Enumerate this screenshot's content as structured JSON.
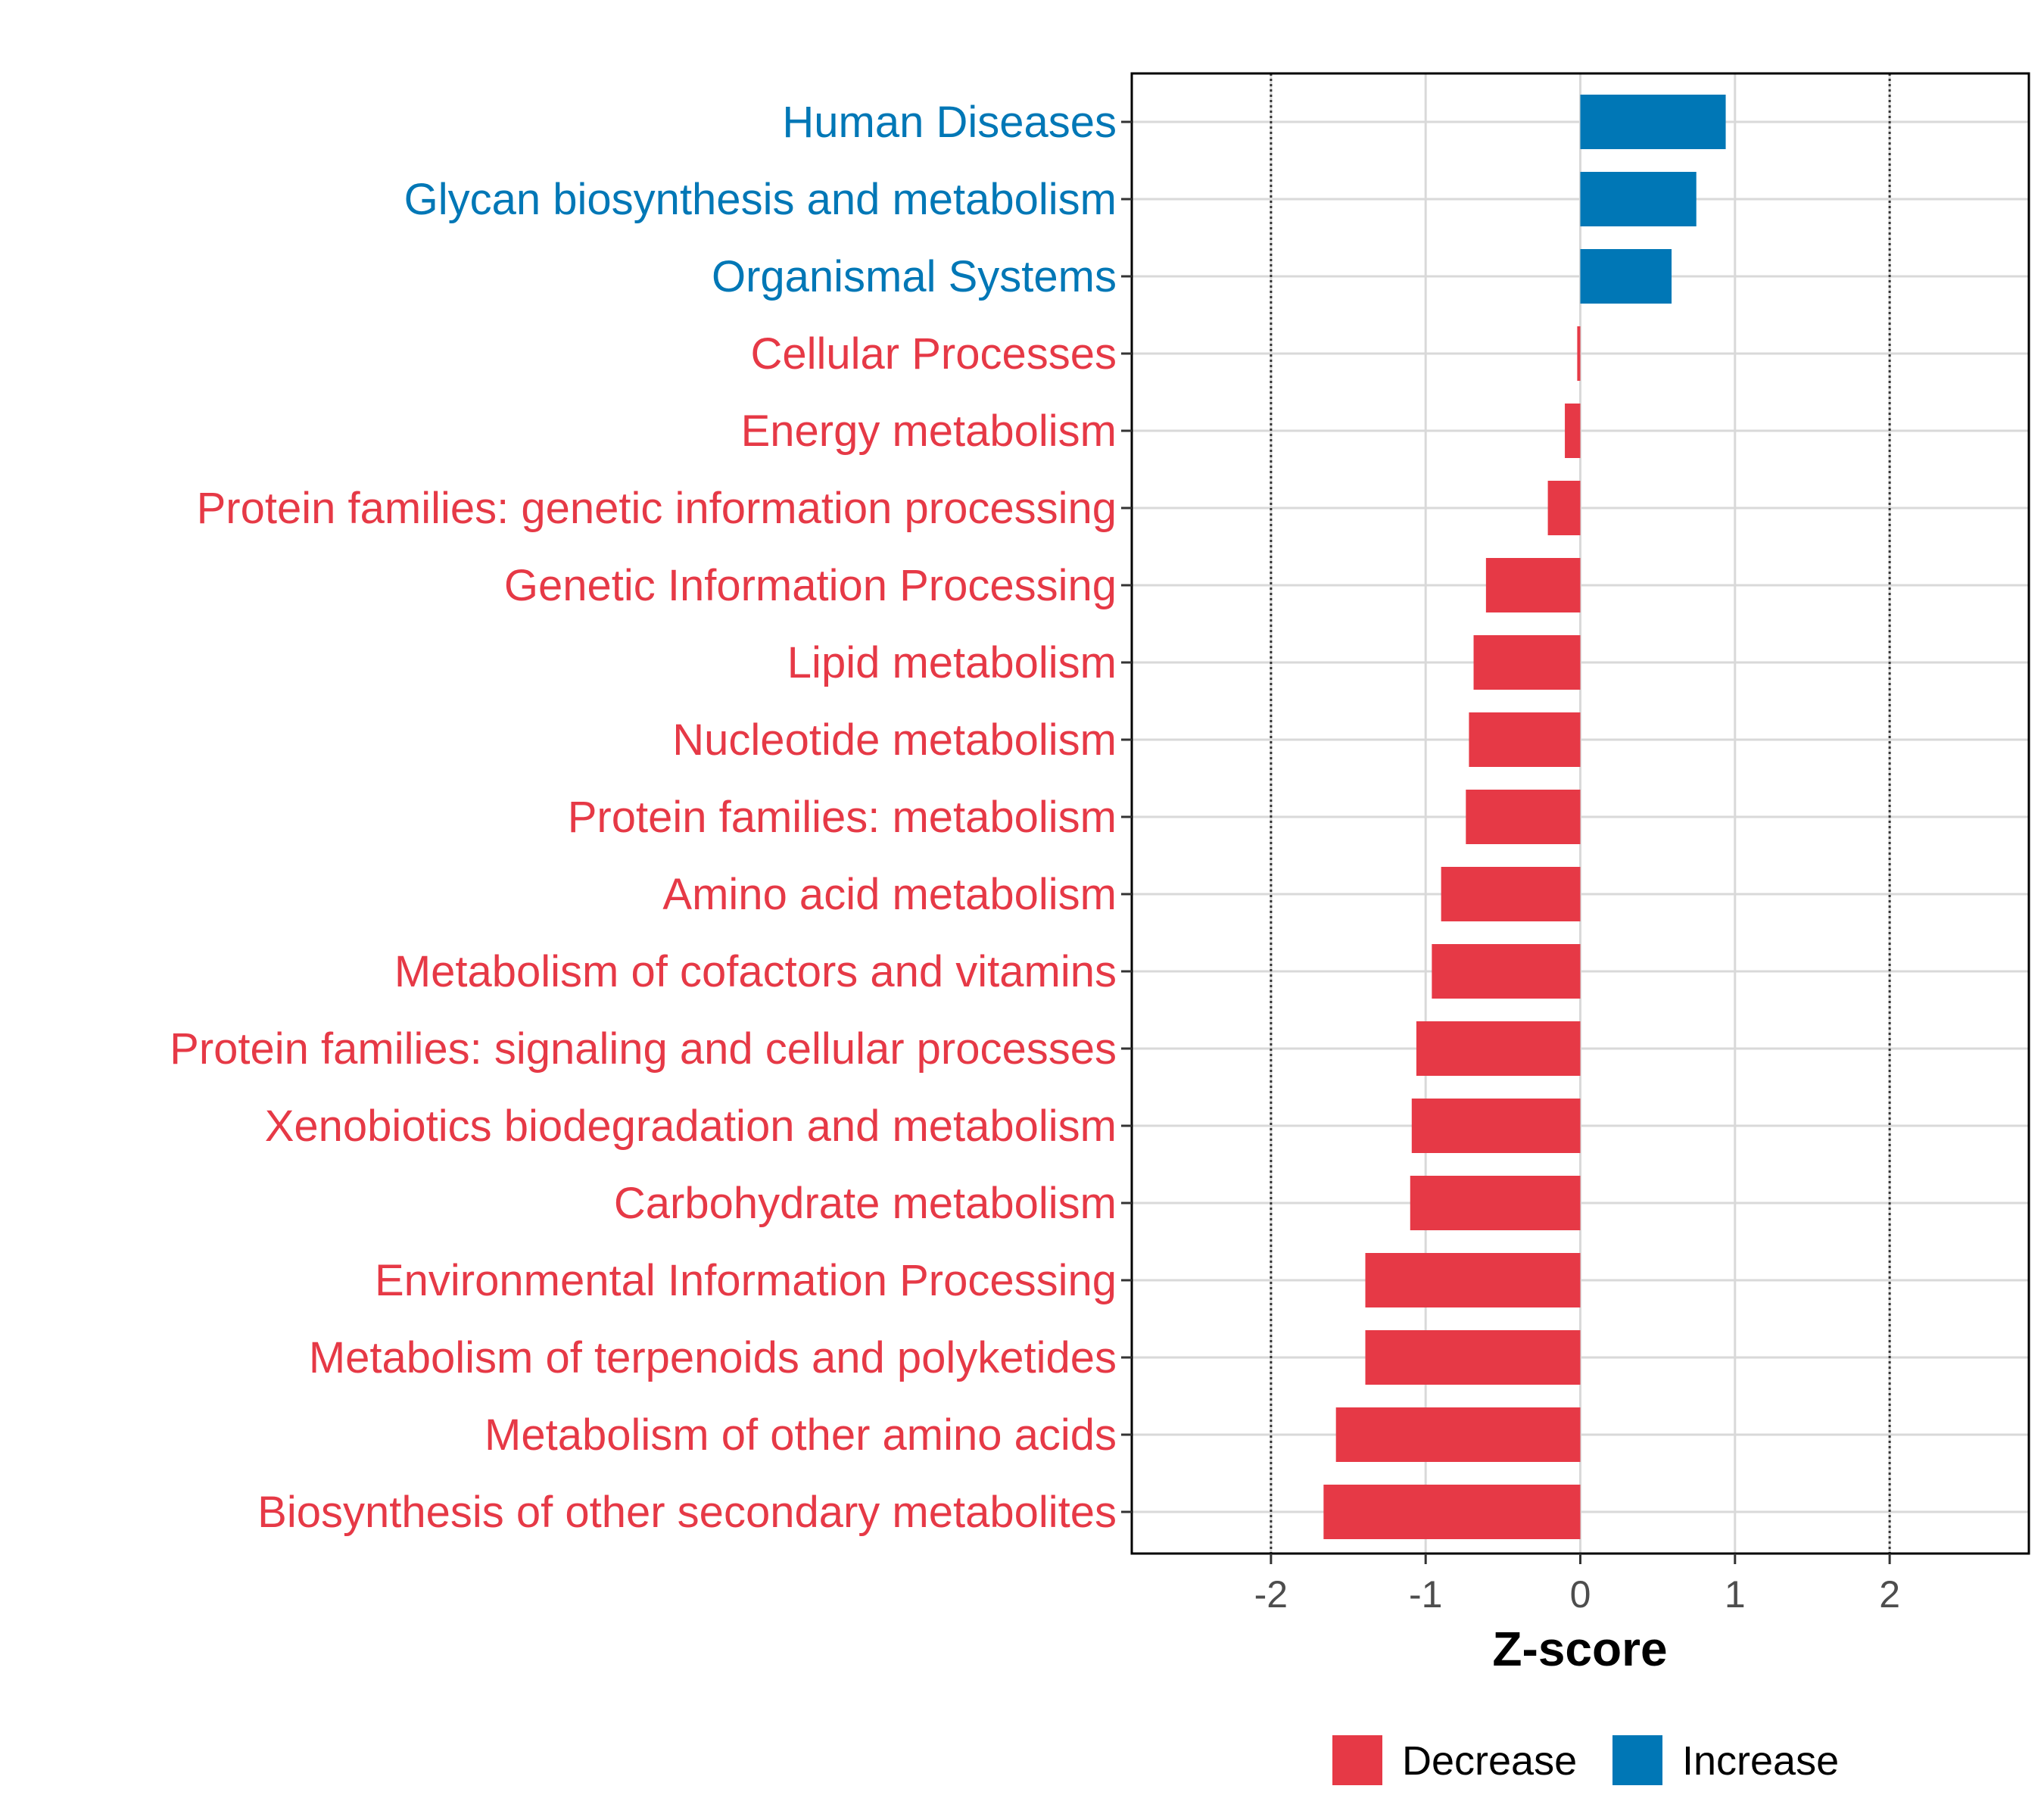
{
  "chart_data": {
    "type": "bar",
    "orientation": "horizontal",
    "xlabel": "Z-score",
    "xlim": [
      -2.9,
      2.9
    ],
    "xticks": [
      -2,
      -1,
      0,
      1,
      2
    ],
    "xtick_labels": [
      "-2",
      "-1",
      "0",
      "1",
      "2"
    ],
    "reference_lines": [
      -2,
      2
    ],
    "grid": true,
    "legend_position": "bottom",
    "categories": [
      "Human Diseases",
      "Glycan biosynthesis and metabolism",
      "Organismal Systems",
      "Cellular Processes",
      "Energy metabolism",
      "Protein families: genetic information processing",
      "Genetic Information Processing",
      "Lipid metabolism",
      "Nucleotide metabolism",
      "Protein families: metabolism",
      "Amino acid metabolism",
      "Metabolism of cofactors and vitamins",
      "Protein families: signaling and cellular processes",
      "Xenobiotics biodegradation and metabolism",
      "Carbohydrate metabolism",
      "Environmental Information Processing",
      "Metabolism of terpenoids and polyketides",
      "Metabolism of other amino acids",
      "Biosynthesis of other secondary metabolites"
    ],
    "values": [
      0.94,
      0.75,
      0.59,
      -0.02,
      -0.1,
      -0.21,
      -0.61,
      -0.69,
      -0.72,
      -0.74,
      -0.9,
      -0.96,
      -1.06,
      -1.09,
      -1.1,
      -1.39,
      -1.39,
      -1.58,
      -1.66
    ],
    "groups": [
      "Increase",
      "Increase",
      "Increase",
      "Decrease",
      "Decrease",
      "Decrease",
      "Decrease",
      "Decrease",
      "Decrease",
      "Decrease",
      "Decrease",
      "Decrease",
      "Decrease",
      "Decrease",
      "Decrease",
      "Decrease",
      "Decrease",
      "Decrease",
      "Decrease"
    ],
    "legend": [
      {
        "name": "Decrease",
        "color": "#E63946"
      },
      {
        "name": "Increase",
        "color": "#0077B6"
      }
    ]
  }
}
